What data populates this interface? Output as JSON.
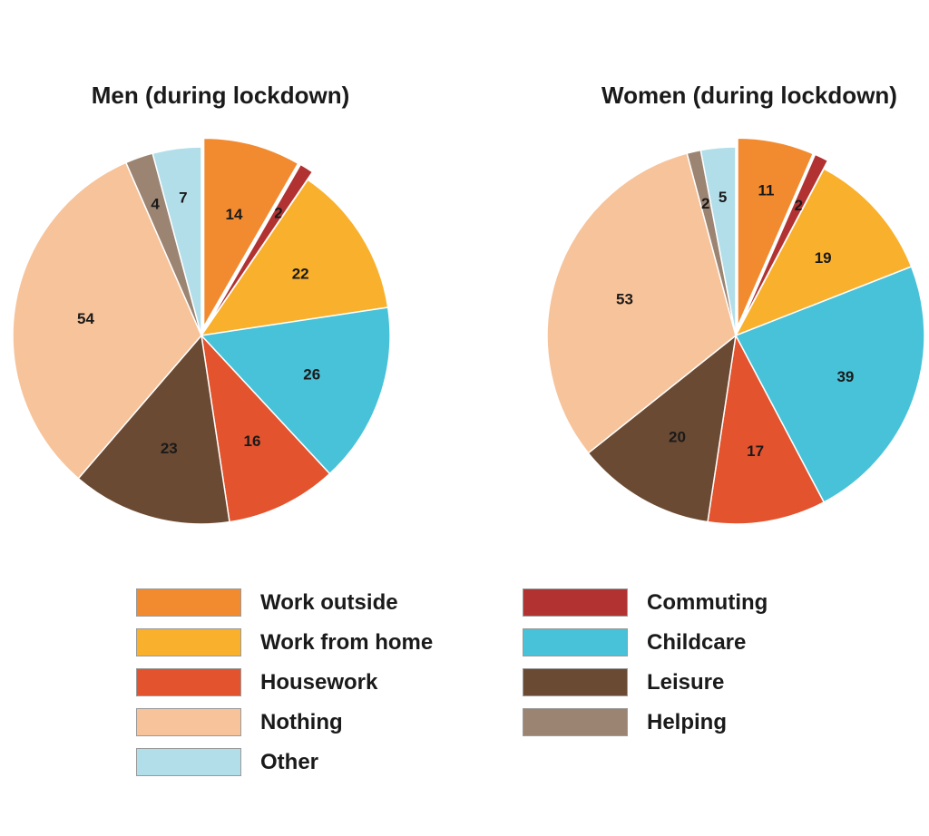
{
  "chart_data": [
    {
      "type": "pie",
      "title": "Men (during lockdown)",
      "categories": [
        "Work outside",
        "Commuting",
        "Work from home",
        "Childcare",
        "Housework",
        "Leisure",
        "Nothing",
        "Helping",
        "Other"
      ],
      "values": [
        14,
        2,
        22,
        26,
        16,
        23,
        54,
        4,
        7
      ],
      "exploded": [
        "Work outside",
        "Commuting"
      ]
    },
    {
      "type": "pie",
      "title": "Women (during lockdown)",
      "categories": [
        "Work outside",
        "Commuting",
        "Work from home",
        "Childcare",
        "Housework",
        "Leisure",
        "Nothing",
        "Helping",
        "Other"
      ],
      "values": [
        11,
        2,
        19,
        39,
        17,
        20,
        53,
        2,
        5
      ],
      "exploded": [
        "Work outside",
        "Commuting"
      ]
    }
  ],
  "legend": {
    "placement": "bottom",
    "items": [
      {
        "label": "Work outside",
        "color": "#F28A30"
      },
      {
        "label": "Commuting",
        "color": "#B23232"
      },
      {
        "label": "Work from home",
        "color": "#F9B02C"
      },
      {
        "label": "Childcare",
        "color": "#48C2D8"
      },
      {
        "label": "Housework",
        "color": "#E2532E"
      },
      {
        "label": "Leisure",
        "color": "#6B4A33"
      },
      {
        "label": "Nothing",
        "color": "#F7C39A"
      },
      {
        "label": "Helping",
        "color": "#9C8472"
      },
      {
        "label": "Other",
        "color": "#B2DEEA"
      }
    ]
  }
}
